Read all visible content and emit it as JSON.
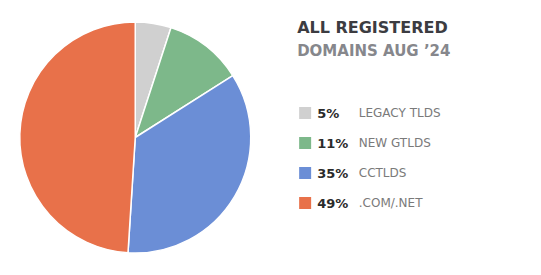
{
  "chart_data": {
    "type": "pie",
    "title": "ALL REGISTERED",
    "subtitle": "DOMAINS AUG ’24",
    "categories": [
      "LEGACY TLDS",
      "NEW GTLDS",
      "CCTLDS",
      ".COM/.NET"
    ],
    "values": [
      5,
      11,
      35,
      49
    ],
    "value_labels": [
      "5%",
      "11%",
      "35%",
      "49%"
    ],
    "colors": [
      "#d0d0d0",
      "#7db88a",
      "#6b8ed6",
      "#e8714a"
    ],
    "legend": "right"
  }
}
